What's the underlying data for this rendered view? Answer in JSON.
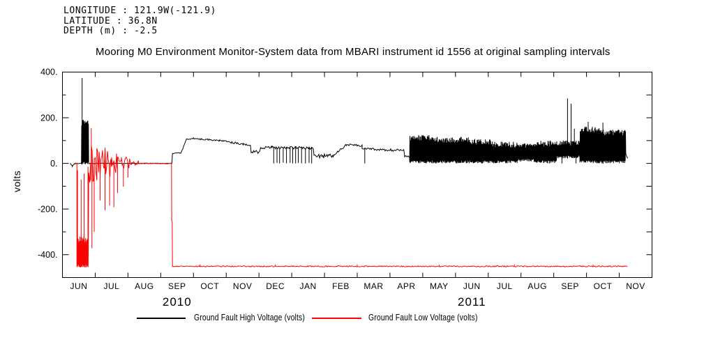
{
  "header": {
    "longitude": "LONGITUDE : 121.9W(-121.9)",
    "latitude": "LATITUDE : 36.8N",
    "depth": "DEPTH (m) : -2.5"
  },
  "chart_data": {
    "type": "line",
    "title": "Mooring M0 Environment Monitor-System data from MBARI instrument id 1556 at original sampling intervals",
    "ylabel": "volts",
    "ylim": [
      -500,
      400
    ],
    "x_months": [
      "JUN",
      "JUL",
      "AUG",
      "SEP",
      "OCT",
      "NOV",
      "DEC",
      "JAN",
      "FEB",
      "MAR",
      "APR",
      "MAY",
      "JUN",
      "JUL",
      "AUG",
      "SEP",
      "OCT",
      "NOV"
    ],
    "x_years": [
      {
        "label": "2010",
        "month_index": 3.5
      },
      {
        "label": "2011",
        "month_index": 12.5
      }
    ],
    "ytick_major": [
      {
        "v": 400,
        "label": "400."
      },
      {
        "v": 200,
        "label": "200."
      },
      {
        "v": 0,
        "label": "0."
      },
      {
        "v": -200,
        "label": "-200."
      },
      {
        "v": -400,
        "label": "-400."
      }
    ],
    "ytick_minor": [
      300,
      100,
      -100,
      -300,
      -500
    ],
    "grid": false,
    "legend_position": "bottom",
    "series": [
      {
        "name": "Ground Fault High Voltage (volts)",
        "color": "#000000",
        "segments": [
          {
            "type": "line",
            "t0": 0.24,
            "t1": 0.3,
            "v0": 0,
            "v1": -12,
            "amp": 2
          },
          {
            "type": "line",
            "t0": 0.3,
            "t1": 0.38,
            "v0": -12,
            "v1": 0,
            "amp": 2
          },
          {
            "type": "line",
            "t0": 0.38,
            "t1": 0.58,
            "v0": 0,
            "v1": 0,
            "amp": 1.5
          },
          {
            "type": "band",
            "t0": 0.58,
            "t1": 0.8,
            "bottom": -5,
            "top": 193
          },
          {
            "type": "line",
            "t0": 0.8,
            "t1": 3.34,
            "v0": 0,
            "v1": 0,
            "amp": 1.5
          },
          {
            "type": "line",
            "t0": 3.36,
            "t1": 3.62,
            "v0": 43,
            "v1": 46,
            "amp": 2
          },
          {
            "type": "line",
            "t0": 3.62,
            "t1": 3.78,
            "v0": 46,
            "v1": 103,
            "amp": 3
          },
          {
            "type": "line",
            "t0": 3.78,
            "t1": 4.0,
            "v0": 105,
            "v1": 110,
            "amp": 3
          },
          {
            "type": "line",
            "t0": 4.0,
            "t1": 4.8,
            "v0": 109,
            "v1": 100,
            "amp": 3
          },
          {
            "type": "line",
            "t0": 4.8,
            "t1": 5.52,
            "v0": 100,
            "v1": 84,
            "amp": 4
          },
          {
            "type": "line",
            "t0": 5.52,
            "t1": 5.74,
            "v0": 84,
            "v1": 80,
            "amp": 4
          },
          {
            "type": "line",
            "t0": 5.76,
            "t1": 6.02,
            "v0": 47,
            "v1": 52,
            "amp": 8
          },
          {
            "type": "line",
            "t0": 6.05,
            "t1": 6.4,
            "v0": 68,
            "v1": 70,
            "amp": 5
          },
          {
            "type": "line",
            "t0": 6.4,
            "t1": 7.66,
            "v0": 70,
            "v1": 67,
            "amp": 6
          },
          {
            "type": "line",
            "t0": 7.68,
            "t1": 8.27,
            "v0": 30,
            "v1": 34,
            "amp": 9
          },
          {
            "type": "line",
            "t0": 8.27,
            "t1": 8.67,
            "v0": 34,
            "v1": 82,
            "amp": 5
          },
          {
            "type": "line",
            "t0": 8.67,
            "t1": 9.15,
            "v0": 82,
            "v1": 78,
            "amp": 4
          },
          {
            "type": "line",
            "t0": 9.15,
            "t1": 9.7,
            "v0": 64,
            "v1": 60,
            "amp": 6
          },
          {
            "type": "line",
            "t0": 9.7,
            "t1": 10.42,
            "v0": 60,
            "v1": 56,
            "amp": 6
          },
          {
            "type": "line",
            "t0": 10.45,
            "t1": 10.6,
            "v0": 31,
            "v1": 30,
            "amp": 6
          },
          {
            "type": "band",
            "t0": 10.6,
            "t1": 11.2,
            "bottom": 0,
            "top": 125
          },
          {
            "type": "band",
            "t0": 11.2,
            "t1": 12.4,
            "bottom": 0,
            "top": 116
          },
          {
            "type": "band",
            "t0": 12.4,
            "t1": 13.1,
            "bottom": 0,
            "top": 108
          },
          {
            "type": "band",
            "t0": 13.1,
            "t1": 13.9,
            "bottom": 0,
            "top": 96
          },
          {
            "type": "band",
            "t0": 13.9,
            "t1": 14.4,
            "bottom": 8,
            "top": 88
          },
          {
            "type": "band",
            "t0": 14.4,
            "t1": 15.1,
            "bottom": 0,
            "top": 100
          },
          {
            "type": "band",
            "t0": 15.1,
            "t1": 15.8,
            "bottom": 22,
            "top": 102
          },
          {
            "type": "band",
            "t0": 15.8,
            "t1": 16.45,
            "bottom": 0,
            "top": 162
          },
          {
            "type": "band",
            "t0": 16.45,
            "t1": 17.2,
            "bottom": 0,
            "top": 148
          },
          {
            "type": "line",
            "t0": 17.2,
            "t1": 17.26,
            "v0": 40,
            "v1": 22,
            "amp": 4
          }
        ],
        "spikes": [
          [
            0.6,
            374
          ],
          [
            6.45,
            0
          ],
          [
            6.55,
            2
          ],
          [
            6.63,
            0
          ],
          [
            6.74,
            3
          ],
          [
            6.84,
            0
          ],
          [
            6.95,
            2
          ],
          [
            7.03,
            0
          ],
          [
            7.12,
            0
          ],
          [
            7.2,
            2
          ],
          [
            7.3,
            0
          ],
          [
            7.42,
            0
          ],
          [
            7.53,
            2
          ],
          [
            7.61,
            0
          ],
          [
            9.23,
            0
          ],
          [
            15.25,
            0
          ],
          [
            15.42,
            284
          ],
          [
            15.53,
            262
          ],
          [
            15.63,
            152
          ],
          [
            15.68,
            0
          ],
          [
            16.05,
            182
          ],
          [
            16.5,
            178
          ]
        ]
      },
      {
        "name": "Ground Fault Low Voltage (volts)",
        "color": "#ff0000",
        "segments": [
          {
            "type": "line",
            "t0": 0.37,
            "t1": 0.44,
            "v0": 0,
            "v1": 0,
            "amp": 2
          },
          {
            "type": "band",
            "t0": 0.44,
            "t1": 0.8,
            "bottom": -456,
            "top": -320
          },
          {
            "type": "line",
            "t0": 0.8,
            "t1": 0.86,
            "v0": -80,
            "v1": 30,
            "amp": 60
          },
          {
            "type": "line",
            "t0": 0.86,
            "t1": 1.05,
            "v0": 0,
            "v1": 0,
            "amp": 110
          },
          {
            "type": "line",
            "t0": 1.05,
            "t1": 1.5,
            "v0": 0,
            "v1": 0,
            "amp": 70
          },
          {
            "type": "line",
            "t0": 1.5,
            "t1": 1.8,
            "v0": 2,
            "v1": 2,
            "amp": 45
          },
          {
            "type": "line",
            "t0": 1.8,
            "t1": 2.1,
            "v0": 3,
            "v1": 3,
            "amp": 25
          },
          {
            "type": "line",
            "t0": 2.1,
            "t1": 2.32,
            "v0": 2,
            "v1": 2,
            "amp": 10
          },
          {
            "type": "line",
            "t0": 2.32,
            "t1": 3.33,
            "v0": 0,
            "v1": 0,
            "amp": 1.5
          },
          {
            "type": "line",
            "t0": 3.335,
            "t1": 3.35,
            "v0": -252,
            "v1": -256,
            "amp": 2
          },
          {
            "type": "line",
            "t0": 3.36,
            "t1": 17.25,
            "v0": -451,
            "v1": -451,
            "amp": 2.5
          }
        ],
        "spikes": [
          [
            0.46,
            -30
          ],
          [
            0.57,
            -70
          ],
          [
            0.66,
            -45
          ],
          [
            0.78,
            -15
          ],
          [
            0.88,
            155
          ],
          [
            0.9,
            -372
          ],
          [
            0.97,
            -300
          ],
          [
            1.15,
            -162
          ],
          [
            1.3,
            -206
          ],
          [
            1.44,
            -185
          ],
          [
            1.57,
            -192
          ],
          [
            1.68,
            -130
          ],
          [
            1.86,
            -102
          ],
          [
            2.0,
            -62
          ],
          [
            4.2,
            -443
          ],
          [
            6.5,
            -444
          ],
          [
            9.0,
            -443
          ],
          [
            11.5,
            -444
          ],
          [
            13.8,
            -443
          ],
          [
            16.2,
            -444
          ]
        ]
      }
    ]
  }
}
